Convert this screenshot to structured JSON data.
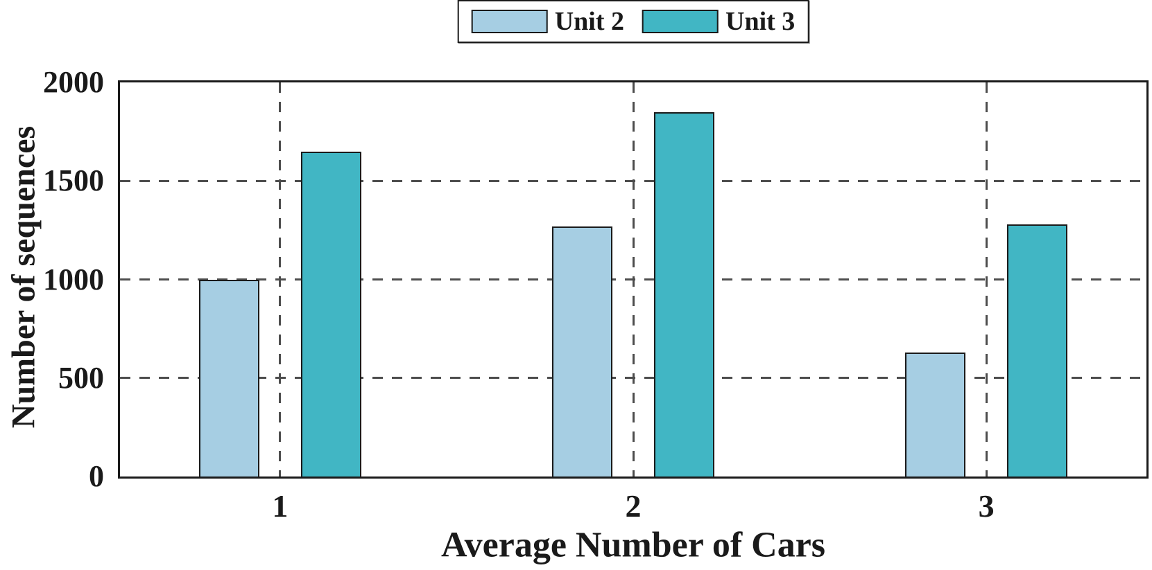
{
  "chart_data": {
    "type": "bar",
    "categories": [
      "1",
      "2",
      "3"
    ],
    "series": [
      {
        "name": "Unit 2",
        "color": "#A6CEE3",
        "values": [
          1000,
          1270,
          630
        ]
      },
      {
        "name": "Unit 3",
        "color": "#41B6C4",
        "values": [
          1650,
          1850,
          1280
        ]
      }
    ],
    "title": "",
    "xlabel": "Average Number of Cars",
    "ylabel": "Number of sequences",
    "ylim": [
      0,
      2000
    ],
    "yticks": [
      0,
      500,
      1000,
      1500,
      2000
    ],
    "grid": "dashed",
    "grid_color": "#4d4d4d",
    "axis_color": "#1a1a1a",
    "legend_position": "top-center"
  }
}
